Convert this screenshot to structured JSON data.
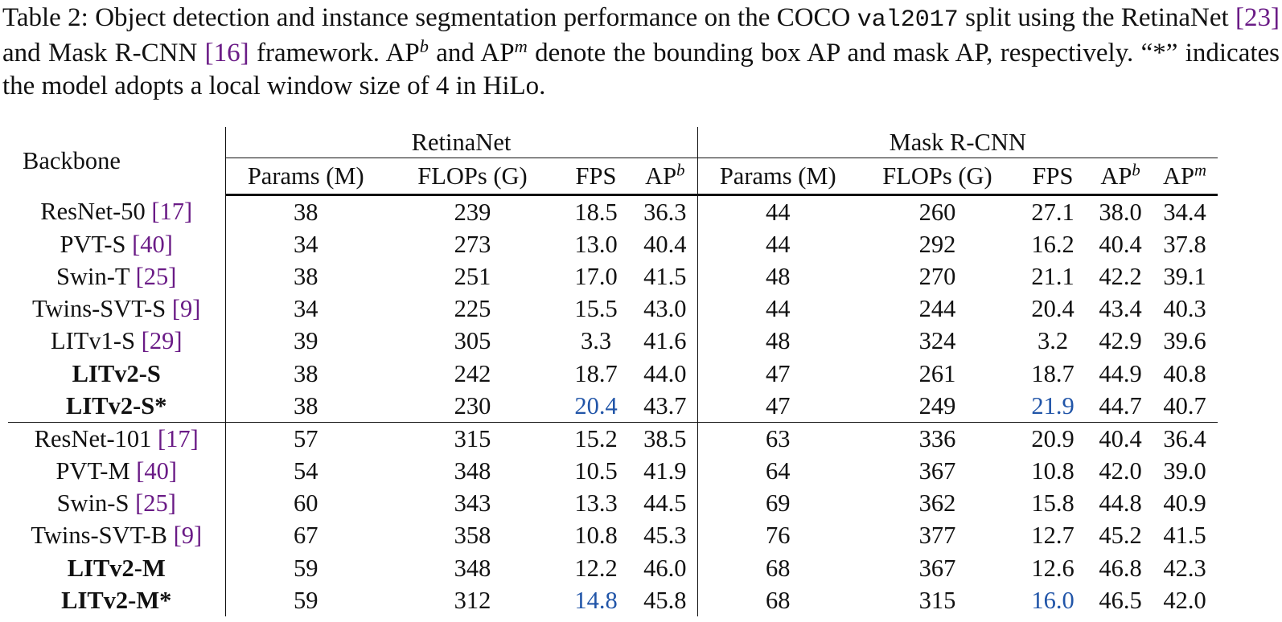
{
  "caption": {
    "t1": "Table 2: Object detection and instance segmentation performance on the COCO ",
    "split": "val2017",
    "t2": " split using the RetinaNet ",
    "cite1": "[23]",
    "t3": " and Mask R-CNN ",
    "cite2": "[16]",
    "t4": " framework. AP",
    "supb": "b",
    "t5": " and AP",
    "supm": "m",
    "t6": " denote the bounding box AP and mask AP, respectively. “*” indicates the model adopts a local window size of 4 in HiLo."
  },
  "table": {
    "backbone_header": "Backbone",
    "group_retina": "RetinaNet",
    "group_mask": "Mask R-CNN",
    "h_params": "Params (M)",
    "h_flops": "FLOPs (G)",
    "h_fps": "FPS",
    "h_ap": "AP",
    "sup_b": "b",
    "sup_m": "m",
    "rows": [
      {
        "name": "ResNet-50 ",
        "cite": "[17]",
        "r": [
          "38",
          "239",
          "18.5",
          "36.3"
        ],
        "m": [
          "44",
          "260",
          "27.1",
          "38.0",
          "34.4"
        ]
      },
      {
        "name": "PVT-S ",
        "cite": "[40]",
        "r": [
          "34",
          "273",
          "13.0",
          "40.4"
        ],
        "m": [
          "44",
          "292",
          "16.2",
          "40.4",
          "37.8"
        ]
      },
      {
        "name": "Swin-T ",
        "cite": "[25]",
        "r": [
          "38",
          "251",
          "17.0",
          "41.5"
        ],
        "m": [
          "48",
          "270",
          "21.1",
          "42.2",
          "39.1"
        ]
      },
      {
        "name": "Twins-SVT-S ",
        "cite": "[9]",
        "r": [
          "34",
          "225",
          "15.5",
          "43.0"
        ],
        "m": [
          "44",
          "244",
          "20.4",
          "43.4",
          "40.3"
        ]
      },
      {
        "name": "LITv1-S ",
        "cite": "[29]",
        "r": [
          "39",
          "305",
          "3.3",
          "41.6"
        ],
        "m": [
          "48",
          "324",
          "3.2",
          "42.9",
          "39.6"
        ]
      },
      {
        "name": "LITv2-S",
        "cite": "",
        "r": [
          "38",
          "242",
          "18.7",
          "44.0"
        ],
        "m": [
          "47",
          "261",
          "18.7",
          "44.9",
          "40.8"
        ]
      },
      {
        "name": "LITv2-S*",
        "cite": "",
        "r": [
          "38",
          "230",
          "20.4",
          "43.7"
        ],
        "m": [
          "47",
          "249",
          "21.9",
          "44.7",
          "40.7"
        ]
      },
      {
        "name": "ResNet-101 ",
        "cite": "[17]",
        "r": [
          "57",
          "315",
          "15.2",
          "38.5"
        ],
        "m": [
          "63",
          "336",
          "20.9",
          "40.4",
          "36.4"
        ]
      },
      {
        "name": "PVT-M ",
        "cite": "[40]",
        "r": [
          "54",
          "348",
          "10.5",
          "41.9"
        ],
        "m": [
          "64",
          "367",
          "10.8",
          "42.0",
          "39.0"
        ]
      },
      {
        "name": "Swin-S ",
        "cite": "[25]",
        "r": [
          "60",
          "343",
          "13.3",
          "44.5"
        ],
        "m": [
          "69",
          "362",
          "15.8",
          "44.8",
          "40.9"
        ]
      },
      {
        "name": "Twins-SVT-B ",
        "cite": "[9]",
        "r": [
          "67",
          "358",
          "10.8",
          "45.3"
        ],
        "m": [
          "76",
          "377",
          "12.7",
          "45.2",
          "41.5"
        ]
      },
      {
        "name": "LITv2-M",
        "cite": "",
        "r": [
          "59",
          "348",
          "12.2",
          "46.0"
        ],
        "m": [
          "68",
          "367",
          "12.6",
          "46.8",
          "42.3"
        ]
      },
      {
        "name": "LITv2-M*",
        "cite": "",
        "r": [
          "59",
          "312",
          "14.8",
          "45.8"
        ],
        "m": [
          "68",
          "315",
          "16.0",
          "46.5",
          "42.0"
        ]
      }
    ]
  }
}
